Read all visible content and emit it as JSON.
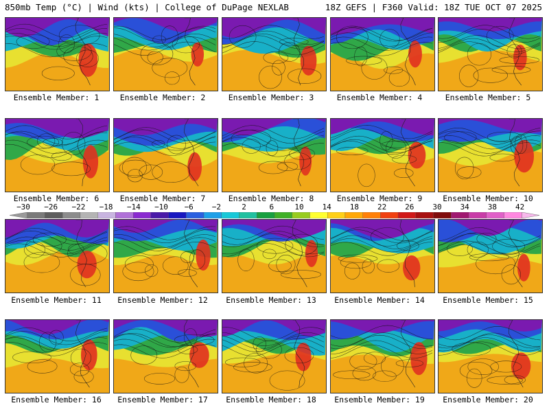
{
  "header": {
    "left": "850mb Temp (°C) | Wind (kts) | College of DuPage NEXLAB",
    "right": "18Z GEFS | F360 Valid: 18Z TUE OCT 07 2025"
  },
  "members": [
    "Ensemble Member: 1",
    "Ensemble Member: 2",
    "Ensemble Member: 3",
    "Ensemble Member: 4",
    "Ensemble Member: 5",
    "Ensemble Member: 6",
    "Ensemble Member: 7",
    "Ensemble Member: 8",
    "Ensemble Member: 9",
    "Ensemble Member: 10",
    "Ensemble Member: 11",
    "Ensemble Member: 12",
    "Ensemble Member: 13",
    "Ensemble Member: 14",
    "Ensemble Member: 15",
    "Ensemble Member: 16",
    "Ensemble Member: 17",
    "Ensemble Member: 18",
    "Ensemble Member: 19",
    "Ensemble Member: 20"
  ],
  "colorbar": {
    "ticks": [
      "−30",
      "−26",
      "−22",
      "−18",
      "−14",
      "−10",
      "−6",
      "−2",
      "2",
      "6",
      "10",
      "14",
      "18",
      "22",
      "26",
      "30",
      "34",
      "38",
      "42"
    ],
    "colors": [
      "#9a9a9a",
      "#7a7a7a",
      "#5e5e5e",
      "#8c8c8c",
      "#b4b4b4",
      "#c8b4e0",
      "#b070d8",
      "#8a2ad0",
      "#4a1aa8",
      "#1818c0",
      "#2a60e0",
      "#1ea0e8",
      "#18c8d8",
      "#20c0a0",
      "#18a040",
      "#40b028",
      "#98cc20",
      "#ffff30",
      "#ffd018",
      "#ffa808",
      "#ff8008",
      "#f04010",
      "#d01818",
      "#a81010",
      "#800c0c",
      "#a01870",
      "#c83ca8",
      "#e060c8",
      "#ff88e0",
      "#f8b8ec"
    ]
  },
  "map_colors": {
    "cold": "#7a1ab0",
    "cool": "#2a50d8",
    "teal": "#18b0c8",
    "green": "#30a848",
    "yellow": "#e8e030",
    "orange": "#f0a818",
    "hot": "#e03020"
  }
}
